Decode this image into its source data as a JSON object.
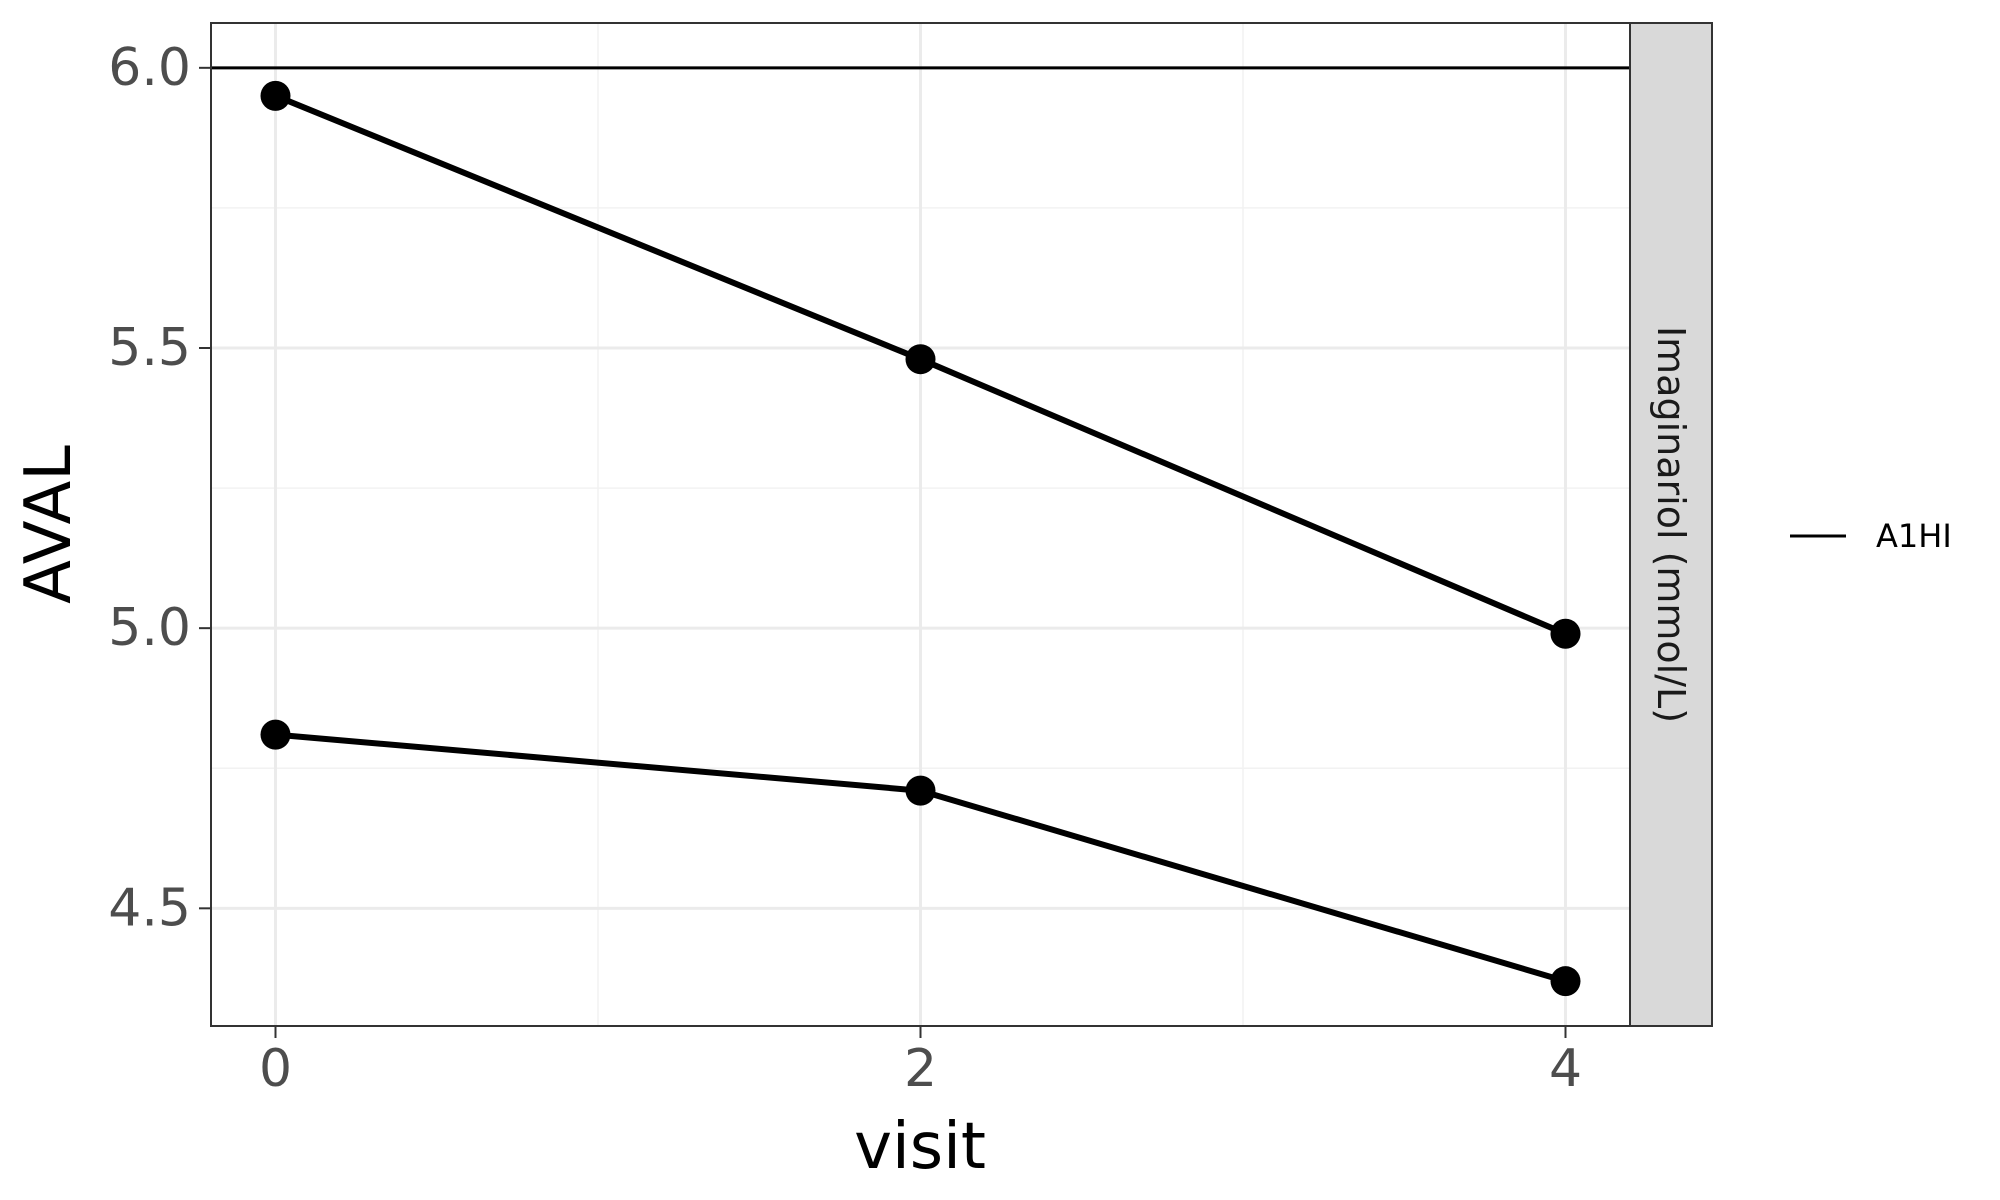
{
  "chart_data": {
    "type": "line",
    "xlabel": "visit",
    "ylabel": "AVAL",
    "facet_label": "Imaginariol (mmol/L)",
    "x_ticks": [
      0,
      2,
      4
    ],
    "y_ticks": [
      4.5,
      5.0,
      5.5,
      6.0
    ],
    "x_tick_labels": [
      "0",
      "2",
      "4"
    ],
    "y_tick_labels": [
      "4.5",
      "5.0",
      "5.5",
      "6.0"
    ],
    "xlim": [
      -0.2,
      4.2
    ],
    "ylim": [
      4.29,
      6.08
    ],
    "grid": true,
    "series": [
      {
        "x": [
          0,
          2,
          4
        ],
        "values": [
          5.95,
          5.48,
          4.99
        ],
        "color": "#000000"
      },
      {
        "x": [
          0,
          2,
          4
        ],
        "values": [
          4.81,
          4.71,
          4.37
        ],
        "color": "#000000"
      }
    ],
    "reference_lines": [
      {
        "name": "A1HI",
        "y": 6.0,
        "color": "#000000"
      }
    ],
    "legend": {
      "position": "right",
      "entries": [
        "A1HI"
      ]
    }
  }
}
